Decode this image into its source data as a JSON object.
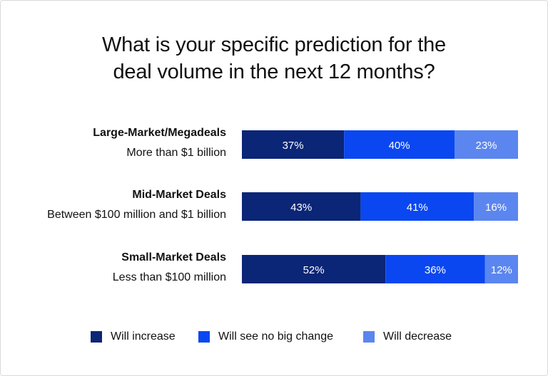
{
  "colors": {
    "will_increase": "#0b2577",
    "no_big_change": "#0a47f0",
    "will_decrease": "#5b86ef",
    "bar_text": "#ffffff"
  },
  "chart_data": {
    "type": "bar",
    "orientation": "horizontal",
    "stacked": true,
    "percent": true,
    "title": "What is your specific prediction for the deal volume in the next 12 months?",
    "title_lines": [
      "What is your specific prediction for the",
      "deal volume in the next 12 months?"
    ],
    "categories": [
      {
        "name": "Large-Market/Megadeals",
        "sublabel": "More than $1 billion"
      },
      {
        "name": "Mid-Market Deals",
        "sublabel": "Between $100 million and $1 billion"
      },
      {
        "name": "Small-Market Deals",
        "sublabel": "Less than $100 million"
      }
    ],
    "series": [
      {
        "name": "Will increase",
        "values": [
          37,
          43,
          52
        ]
      },
      {
        "name": "Will see no big change",
        "values": [
          40,
          41,
          36
        ]
      },
      {
        "name": "Will decrease",
        "values": [
          23,
          16,
          12
        ]
      }
    ],
    "legend_position": "bottom",
    "grid": false
  }
}
